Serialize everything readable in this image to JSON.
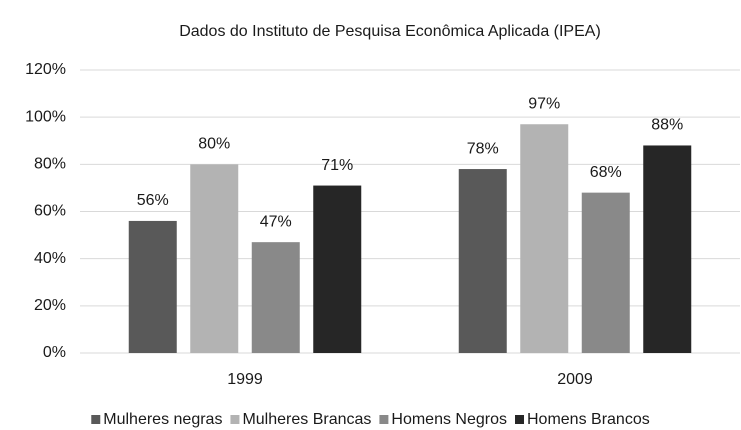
{
  "chart_data": {
    "type": "bar",
    "title": "Dados do Instituto de Pesquisa Econômica Aplicada (IPEA)",
    "categories": [
      "1999",
      "2009"
    ],
    "series": [
      {
        "name": "Mulheres negras",
        "color": "#595959",
        "values": [
          56,
          78
        ],
        "value_labels": [
          "56%",
          "78%"
        ]
      },
      {
        "name": "Mulheres Brancas",
        "color": "#b3b3b3",
        "values": [
          80,
          97
        ],
        "value_labels": [
          "80%",
          "97%"
        ]
      },
      {
        "name": "Homens Negros",
        "color": "#898989",
        "values": [
          47,
          68
        ],
        "value_labels": [
          "47%",
          "68%"
        ]
      },
      {
        "name": "Homens Brancos",
        "color": "#262626",
        "values": [
          71,
          88
        ],
        "value_labels": [
          "71%",
          "88%"
        ]
      }
    ],
    "ylim": [
      0,
      120
    ],
    "yticks": [
      {
        "value": 0,
        "label": "0%"
      },
      {
        "value": 20,
        "label": "20%"
      },
      {
        "value": 40,
        "label": "40%"
      },
      {
        "value": 60,
        "label": "60%"
      },
      {
        "value": 80,
        "label": "80%"
      },
      {
        "value": 100,
        "label": "100%"
      },
      {
        "value": 120,
        "label": "120%"
      }
    ],
    "grid": true,
    "legend": "bottom"
  }
}
